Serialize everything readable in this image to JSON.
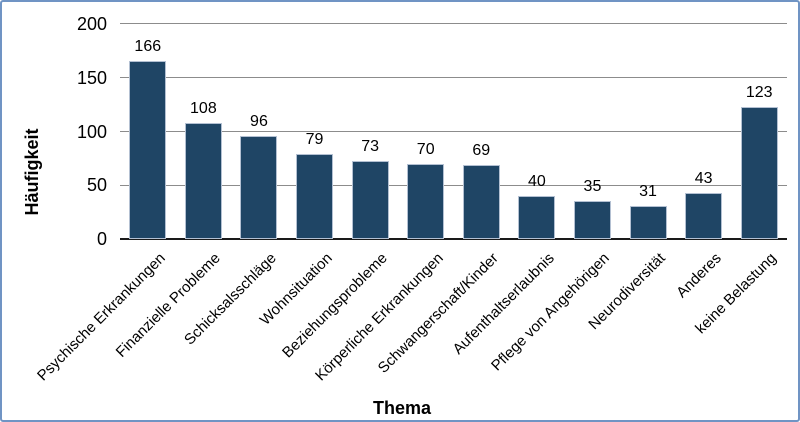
{
  "chart_data": {
    "type": "bar",
    "title": "",
    "xlabel": "Thema",
    "ylabel": "Häufigkeit",
    "categories": [
      "Psychische Erkrankungen",
      "Finanzielle Probleme",
      "Schicksalsschläge",
      "Wohnsituation",
      "Beziehungsprobleme",
      "Körperliche Erkrankungen",
      "Schwangerschaft/Kinder",
      "Aufenthaltserlaubnis",
      "Pflege von Angehörigen",
      "Neurodiversität",
      "Anderes",
      "keine Belastung"
    ],
    "values": [
      166,
      108,
      96,
      79,
      73,
      70,
      69,
      40,
      35,
      31,
      43,
      123
    ],
    "ylim": [
      0,
      200
    ],
    "yticks": [
      0,
      50,
      100,
      150,
      200
    ],
    "grid": "horizontal-gridlines-on",
    "legend": "none",
    "data_labels": true,
    "colors": {
      "bar_fill": "#1F4565",
      "bar_edge": "#B3C0D2",
      "gridline": "#8C8C8C",
      "axis_line": "#1A1A1A",
      "text": "#000000",
      "frame_border": "#7094C4",
      "background": "#FFFFFF"
    }
  }
}
